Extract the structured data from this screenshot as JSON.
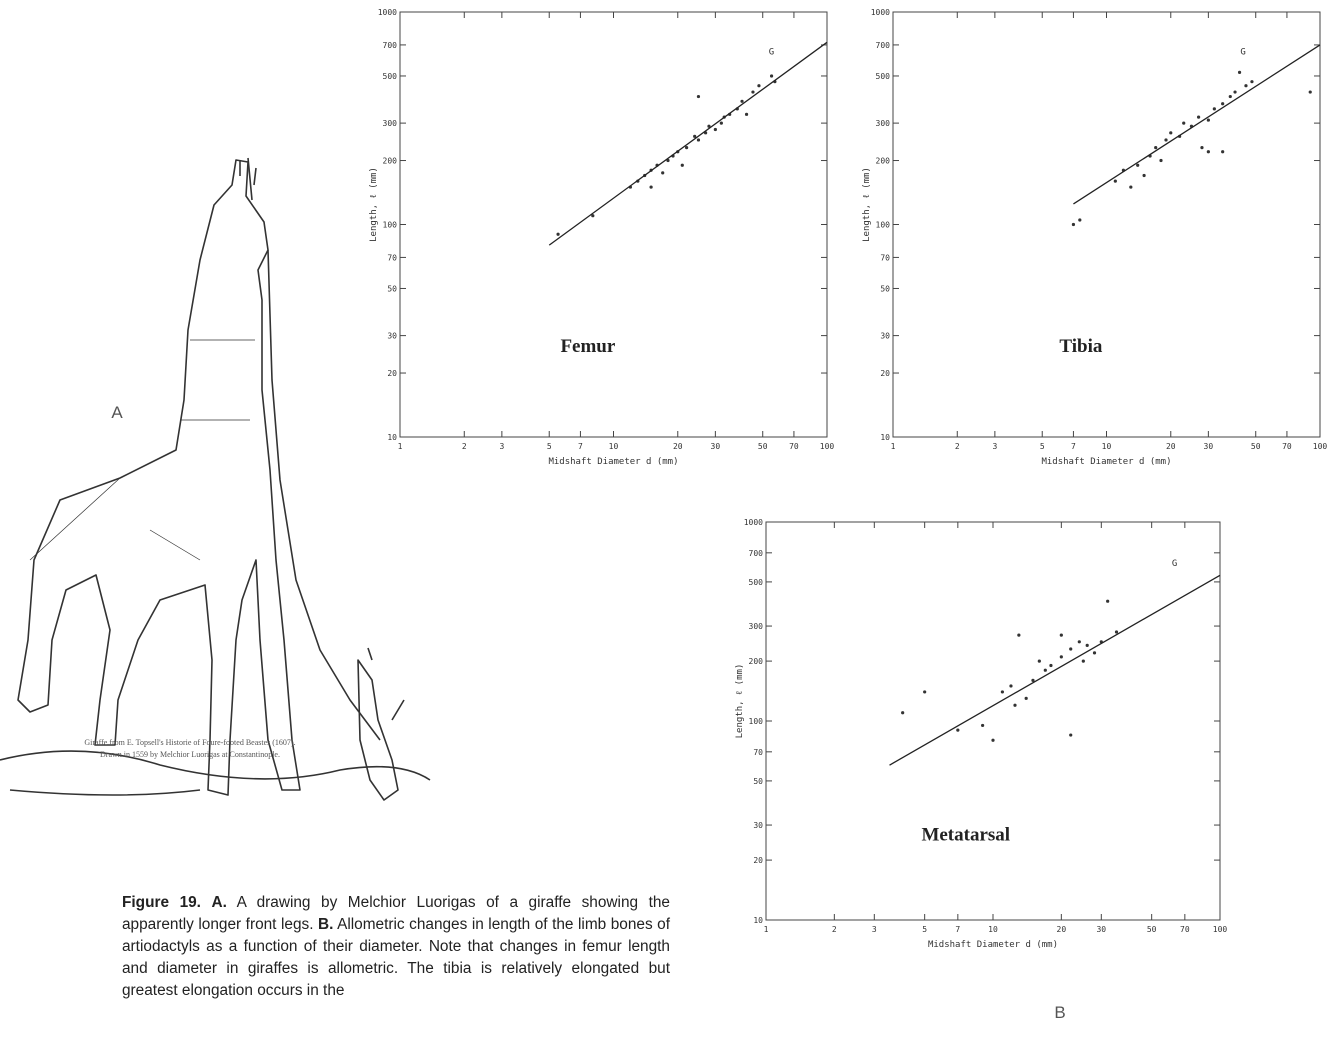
{
  "panel_a": "A",
  "panel_b": "B",
  "credit": [
    "Giraffe from E. Topsell's Historie of Foure-footed Beastes (1607).",
    "Drawn in 1559 by Melchior Luorigas at Constantinople."
  ],
  "caption": {
    "figure": "Figure 19.",
    "a_label": "A.",
    "a_text": "A drawing by Melchior Luorigas of a giraffe showing the apparently longer front legs.",
    "b_label": "B.",
    "b_text": "Allometric changes in length of the limb bones of artiodactyls as a function of their diameter. Note that changes in femur length and diameter in giraffes is allometric. The tibia is relatively elongated but greatest elongation occurs in the"
  },
  "chart_data": [
    {
      "type": "scatter",
      "title": "Femur",
      "annotation": "G",
      "x_label": "Midshaft Diameter d (mm)",
      "y_label": "Length, ℓ (mm)",
      "log_x": true,
      "log_y": true,
      "xlim": [
        1,
        100
      ],
      "ylim": [
        10,
        1000
      ],
      "xticks": [
        1,
        2,
        3,
        5,
        7,
        10,
        20,
        30,
        50,
        70,
        100
      ],
      "yticks": [
        10,
        20,
        30,
        50,
        70,
        100,
        200,
        300,
        500,
        700,
        1000
      ],
      "series": [
        {
          "color": "#333333",
          "x": [
            5.5,
            8,
            12,
            13,
            14,
            15,
            15,
            16,
            17,
            18,
            19,
            20,
            21,
            22,
            24,
            25,
            25,
            27,
            28,
            30,
            32,
            33,
            35,
            38,
            40,
            42,
            45,
            48,
            55,
            57
          ],
          "values": [
            90,
            110,
            150,
            160,
            170,
            180,
            150,
            190,
            175,
            200,
            210,
            220,
            190,
            230,
            260,
            250,
            400,
            270,
            290,
            280,
            300,
            320,
            330,
            350,
            380,
            330,
            420,
            450,
            500,
            470
          ]
        },
        {
          "type": "line",
          "color": "#222222",
          "x": [
            5,
            100
          ],
          "values": [
            80,
            720
          ]
        }
      ]
    },
    {
      "type": "scatter",
      "title": "Tibia",
      "annotation": "G",
      "x_label": "Midshaft Diameter d (mm)",
      "y_label": "Length, ℓ (mm)",
      "log_x": true,
      "log_y": true,
      "xlim": [
        1,
        100
      ],
      "ylim": [
        10,
        1000
      ],
      "xticks": [
        1,
        2,
        3,
        5,
        7,
        10,
        20,
        30,
        50,
        70,
        100
      ],
      "yticks": [
        10,
        20,
        30,
        50,
        70,
        100,
        200,
        300,
        500,
        700,
        1000
      ],
      "series": [
        {
          "color": "#333333",
          "x": [
            7,
            7.5,
            11,
            12,
            13,
            14,
            15,
            16,
            17,
            18,
            19,
            20,
            22,
            23,
            25,
            27,
            28,
            30,
            30,
            32,
            35,
            35,
            38,
            40,
            42,
            45,
            48,
            90
          ],
          "values": [
            100,
            105,
            160,
            180,
            150,
            190,
            170,
            210,
            230,
            200,
            250,
            270,
            260,
            300,
            290,
            320,
            230,
            310,
            220,
            350,
            370,
            220,
            400,
            420,
            520,
            450,
            470,
            420
          ]
        },
        {
          "type": "line",
          "color": "#222222",
          "x": [
            7,
            100
          ],
          "values": [
            125,
            700
          ]
        }
      ]
    },
    {
      "type": "scatter",
      "title": "Metatarsal",
      "annotation": "G",
      "x_label": "Midshaft Diameter d (mm)",
      "y_label": "Length, ℓ (mm)",
      "log_x": true,
      "log_y": true,
      "xlim": [
        1,
        100
      ],
      "ylim": [
        10,
        1000
      ],
      "xticks": [
        1,
        2,
        3,
        5,
        7,
        10,
        20,
        30,
        50,
        70,
        100
      ],
      "yticks": [
        10,
        20,
        30,
        50,
        70,
        100,
        200,
        300,
        500,
        700,
        1000
      ],
      "series": [
        {
          "color": "#333333",
          "x": [
            4,
            5,
            7,
            9,
            10,
            11,
            12,
            12.5,
            13,
            14,
            15,
            16,
            17,
            18,
            20,
            20,
            22,
            22,
            24,
            25,
            26,
            28,
            30,
            32,
            35
          ],
          "values": [
            110,
            140,
            90,
            95,
            80,
            140,
            150,
            120,
            270,
            130,
            160,
            200,
            180,
            190,
            210,
            270,
            230,
            85,
            250,
            200,
            240,
            220,
            250,
            400,
            280
          ]
        },
        {
          "type": "line",
          "color": "#222222",
          "x": [
            3.5,
            100
          ],
          "values": [
            60,
            540
          ]
        }
      ]
    }
  ]
}
